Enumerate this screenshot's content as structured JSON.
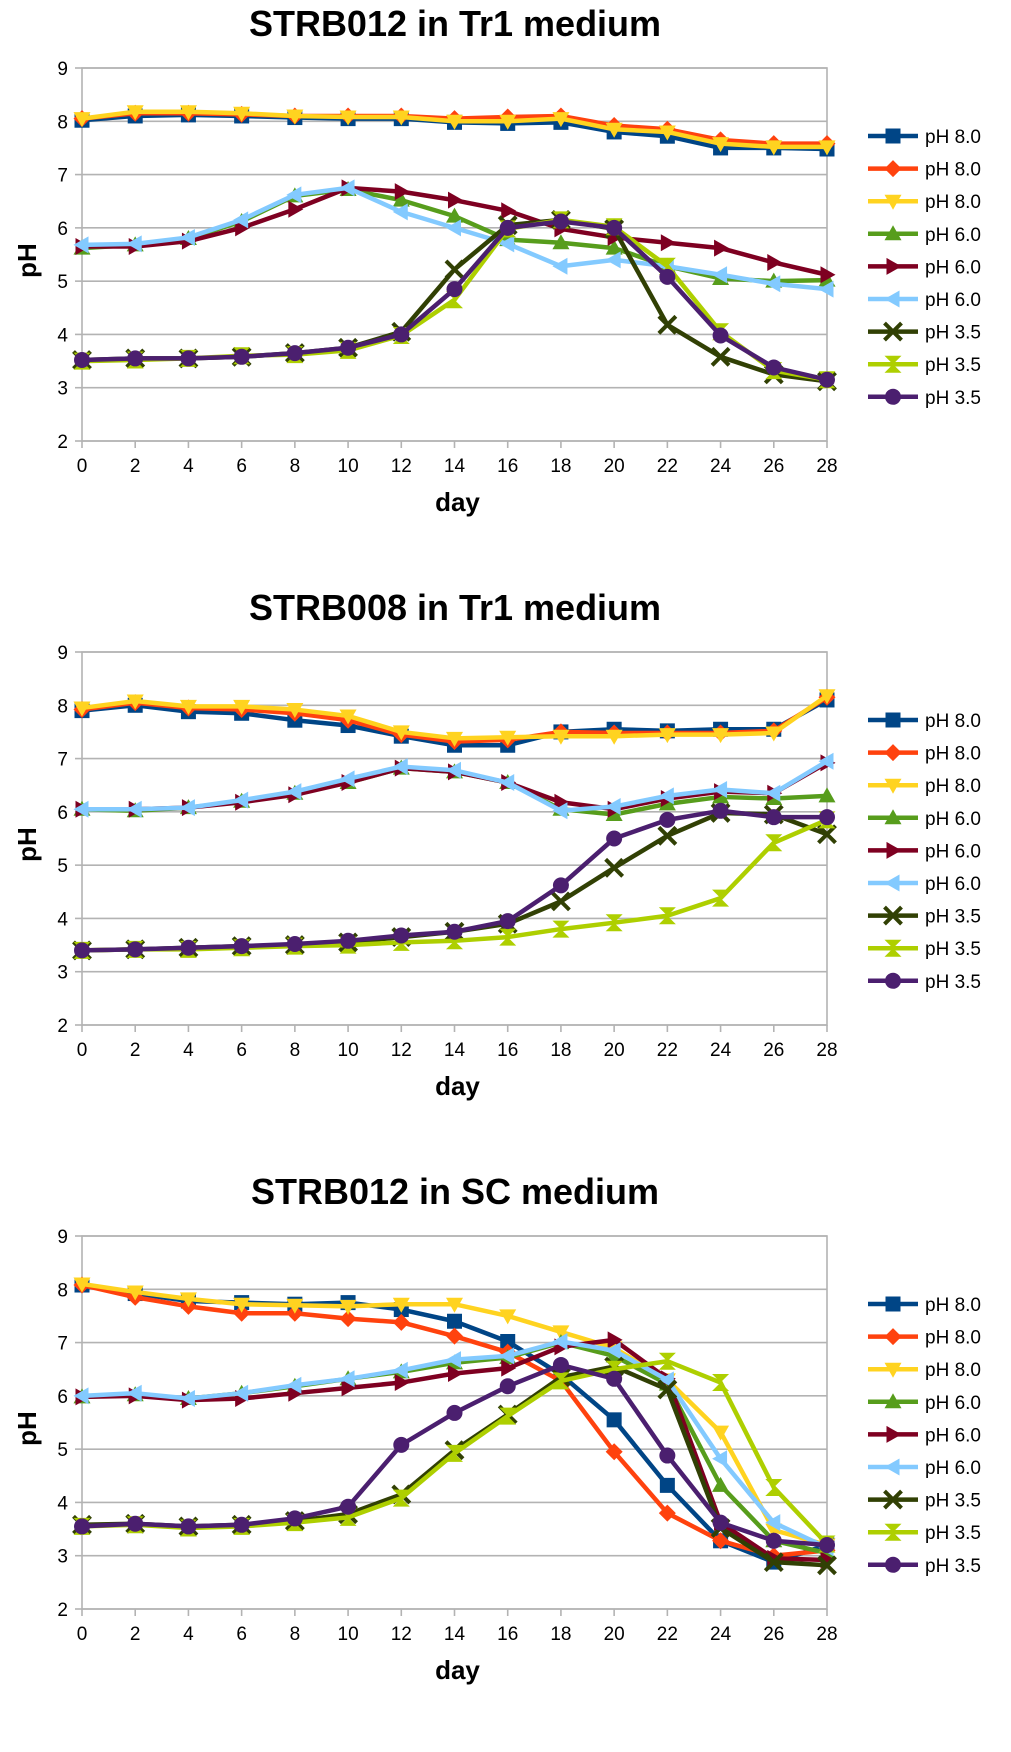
{
  "colors": {
    "pH8_a": "#004586",
    "pH8_b": "#ff420e",
    "pH8_c": "#ffd320",
    "pH6_a": "#579d1c",
    "pH6_b": "#7e0021",
    "pH6_c": "#83caff",
    "pH35_a": "#314004",
    "pH35_b": "#aecf00",
    "pH35_c": "#4b1f6f"
  },
  "chart_data": [
    {
      "type": "line",
      "title": "STRB012 in Tr1 medium",
      "xlabel": "day",
      "ylabel": "pH",
      "x": [
        0,
        2,
        4,
        6,
        8,
        10,
        12,
        14,
        16,
        18,
        20,
        22,
        24,
        26,
        28
      ],
      "xticks": [
        "0",
        "2",
        "4",
        "6",
        "8",
        "10",
        "12",
        "14",
        "16",
        "18",
        "20",
        "22",
        "24",
        "26",
        "28"
      ],
      "yticks": [
        "2",
        "3",
        "4",
        "5",
        "6",
        "7",
        "8",
        "9"
      ],
      "xlim": [
        0,
        28
      ],
      "ylim": [
        2,
        9
      ],
      "grid": true,
      "legend": "right",
      "series": [
        {
          "name": "pH 8.0",
          "marker": "square",
          "color": "#004586",
          "values": [
            8.02,
            8.1,
            8.12,
            8.1,
            8.07,
            8.05,
            8.05,
            7.98,
            7.96,
            7.98,
            7.8,
            7.72,
            7.5,
            7.5,
            7.48
          ]
        },
        {
          "name": "pH 8.0",
          "marker": "diamond",
          "color": "#ff420e",
          "values": [
            8.05,
            8.15,
            8.15,
            8.13,
            8.1,
            8.1,
            8.1,
            8.05,
            8.08,
            8.1,
            7.92,
            7.85,
            7.65,
            7.58,
            7.58
          ]
        },
        {
          "name": "pH 8.0",
          "marker": "triangle-down",
          "color": "#ffd320",
          "values": [
            8.05,
            8.18,
            8.18,
            8.15,
            8.1,
            8.08,
            8.08,
            8.0,
            8.0,
            8.05,
            7.85,
            7.8,
            7.58,
            7.52,
            7.52
          ]
        },
        {
          "name": "pH 6.0",
          "marker": "triangle-up",
          "color": "#579d1c",
          "values": [
            5.62,
            5.68,
            5.8,
            6.12,
            6.6,
            6.72,
            6.52,
            6.22,
            5.78,
            5.72,
            5.62,
            5.28,
            5.05,
            5.0,
            5.02
          ]
        },
        {
          "name": "pH 6.0",
          "marker": "triangle-right",
          "color": "#7e0021",
          "values": [
            5.65,
            5.65,
            5.75,
            6.0,
            6.35,
            6.75,
            6.68,
            6.52,
            6.32,
            5.98,
            5.82,
            5.72,
            5.62,
            5.35,
            5.12
          ]
        },
        {
          "name": "pH 6.0",
          "marker": "triangle-left",
          "color": "#83caff",
          "values": [
            5.68,
            5.7,
            5.82,
            6.15,
            6.62,
            6.75,
            6.3,
            6.0,
            5.7,
            5.28,
            5.4,
            5.28,
            5.12,
            4.95,
            4.85
          ]
        },
        {
          "name": "pH 3.5",
          "marker": "x",
          "color": "#314004",
          "values": [
            3.52,
            3.55,
            3.55,
            3.58,
            3.65,
            3.75,
            4.05,
            5.22,
            6.05,
            6.15,
            5.98,
            4.18,
            3.58,
            3.25,
            3.12
          ]
        },
        {
          "name": "pH 3.5",
          "marker": "hourglass",
          "color": "#aecf00",
          "values": [
            3.5,
            3.52,
            3.55,
            3.6,
            3.62,
            3.7,
            3.98,
            4.65,
            5.98,
            6.15,
            6.02,
            5.28,
            4.05,
            3.32,
            3.15
          ]
        },
        {
          "name": "pH 3.5",
          "marker": "circle",
          "color": "#4b1f6f",
          "values": [
            3.52,
            3.55,
            3.55,
            3.58,
            3.65,
            3.75,
            4.0,
            4.85,
            6.0,
            6.12,
            6.0,
            5.08,
            3.98,
            3.38,
            3.15
          ]
        }
      ]
    },
    {
      "type": "line",
      "title": "STRB008 in Tr1 medium",
      "xlabel": "day",
      "ylabel": "pH",
      "x": [
        0,
        2,
        4,
        6,
        8,
        10,
        12,
        14,
        16,
        18,
        20,
        22,
        24,
        26,
        28
      ],
      "xticks": [
        "0",
        "2",
        "4",
        "6",
        "8",
        "10",
        "12",
        "14",
        "16",
        "18",
        "20",
        "22",
        "24",
        "26",
        "28"
      ],
      "yticks": [
        "2",
        "3",
        "4",
        "5",
        "6",
        "7",
        "8",
        "9"
      ],
      "xlim": [
        0,
        28
      ],
      "ylim": [
        2,
        9
      ],
      "grid": true,
      "legend": "right",
      "series": [
        {
          "name": "pH 8.0",
          "marker": "square",
          "color": "#004586",
          "values": [
            7.9,
            8.0,
            7.88,
            7.85,
            7.72,
            7.62,
            7.42,
            7.25,
            7.25,
            7.5,
            7.55,
            7.52,
            7.55,
            7.55,
            8.1
          ]
        },
        {
          "name": "pH 8.0",
          "marker": "diamond",
          "color": "#ff420e",
          "values": [
            7.92,
            8.05,
            7.95,
            7.92,
            7.85,
            7.72,
            7.45,
            7.32,
            7.35,
            7.5,
            7.48,
            7.48,
            7.48,
            7.52,
            8.15
          ]
        },
        {
          "name": "pH 8.0",
          "marker": "triangle-down",
          "color": "#ffd320",
          "values": [
            7.95,
            8.08,
            7.98,
            7.98,
            7.92,
            7.8,
            7.5,
            7.38,
            7.4,
            7.42,
            7.42,
            7.45,
            7.45,
            7.48,
            8.18
          ]
        },
        {
          "name": "pH 6.0",
          "marker": "triangle-up",
          "color": "#579d1c",
          "values": [
            6.05,
            6.02,
            6.08,
            6.2,
            6.35,
            6.55,
            6.82,
            6.75,
            6.55,
            6.05,
            5.95,
            6.15,
            6.28,
            6.25,
            6.3
          ]
        },
        {
          "name": "pH 6.0",
          "marker": "triangle-right",
          "color": "#7e0021",
          "values": [
            6.05,
            6.05,
            6.08,
            6.18,
            6.32,
            6.55,
            6.82,
            6.75,
            6.55,
            6.18,
            6.05,
            6.25,
            6.38,
            6.35,
            6.92
          ]
        },
        {
          "name": "pH 6.0",
          "marker": "triangle-left",
          "color": "#83caff",
          "values": [
            6.05,
            6.05,
            6.08,
            6.22,
            6.38,
            6.62,
            6.85,
            6.78,
            6.55,
            6.02,
            6.1,
            6.3,
            6.42,
            6.35,
            6.95
          ]
        },
        {
          "name": "pH 3.5",
          "marker": "x",
          "color": "#314004",
          "values": [
            3.4,
            3.42,
            3.45,
            3.48,
            3.5,
            3.55,
            3.65,
            3.75,
            3.9,
            4.32,
            4.95,
            5.55,
            5.98,
            5.95,
            5.58
          ]
        },
        {
          "name": "pH 3.5",
          "marker": "hourglass",
          "color": "#aecf00",
          "values": [
            3.4,
            3.42,
            3.42,
            3.45,
            3.48,
            3.5,
            3.55,
            3.58,
            3.65,
            3.8,
            3.92,
            4.05,
            4.38,
            5.42,
            5.85
          ]
        },
        {
          "name": "pH 3.5",
          "marker": "circle",
          "color": "#4b1f6f",
          "values": [
            3.4,
            3.42,
            3.45,
            3.48,
            3.52,
            3.58,
            3.68,
            3.75,
            3.95,
            4.62,
            5.5,
            5.85,
            6.02,
            5.9,
            5.9
          ]
        }
      ]
    },
    {
      "type": "line",
      "title": "STRB012 in SC medium",
      "xlabel": "day",
      "ylabel": "pH",
      "x": [
        0,
        2,
        4,
        6,
        8,
        10,
        12,
        14,
        16,
        18,
        20,
        22,
        24,
        26,
        28
      ],
      "xticks": [
        "0",
        "2",
        "4",
        "6",
        "8",
        "10",
        "12",
        "14",
        "16",
        "18",
        "20",
        "22",
        "24",
        "26",
        "28"
      ],
      "yticks": [
        "2",
        "3",
        "4",
        "5",
        "6",
        "7",
        "8",
        "9"
      ],
      "xlim": [
        0,
        28
      ],
      "ylim": [
        2,
        9
      ],
      "grid": true,
      "legend": "right",
      "series": [
        {
          "name": "pH 8.0",
          "marker": "square",
          "color": "#004586",
          "values": [
            8.08,
            7.92,
            7.78,
            7.75,
            7.72,
            7.75,
            7.62,
            7.4,
            7.02,
            6.4,
            5.55,
            4.32,
            3.28,
            2.88,
            3.2
          ]
        },
        {
          "name": "pH 8.0",
          "marker": "diamond",
          "color": "#ff420e",
          "values": [
            8.08,
            7.85,
            7.68,
            7.55,
            7.55,
            7.45,
            7.38,
            7.12,
            6.82,
            6.28,
            4.95,
            3.8,
            3.28,
            3.0,
            3.1
          ]
        },
        {
          "name": "pH 8.0",
          "marker": "triangle-down",
          "color": "#ffd320",
          "values": [
            8.1,
            7.95,
            7.82,
            7.72,
            7.7,
            7.68,
            7.72,
            7.72,
            7.5,
            7.2,
            6.9,
            6.3,
            5.32,
            3.48,
            3.2
          ]
        },
        {
          "name": "pH 6.0",
          "marker": "triangle-up",
          "color": "#579d1c",
          "values": [
            5.98,
            6.02,
            5.95,
            6.05,
            6.18,
            6.32,
            6.45,
            6.62,
            6.72,
            7.0,
            6.75,
            6.22,
            4.32,
            3.28,
            3.05
          ]
        },
        {
          "name": "pH 6.0",
          "marker": "triangle-right",
          "color": "#7e0021",
          "values": [
            5.98,
            6.0,
            5.92,
            5.95,
            6.05,
            6.15,
            6.25,
            6.42,
            6.52,
            6.92,
            7.05,
            6.32,
            3.62,
            2.95,
            2.92
          ]
        },
        {
          "name": "pH 6.0",
          "marker": "triangle-left",
          "color": "#83caff",
          "values": [
            6.0,
            6.05,
            5.95,
            6.05,
            6.2,
            6.32,
            6.48,
            6.68,
            6.75,
            7.02,
            6.85,
            6.3,
            4.82,
            3.62,
            3.15
          ]
        },
        {
          "name": "pH 3.5",
          "marker": "x",
          "color": "#314004",
          "values": [
            3.58,
            3.6,
            3.55,
            3.58,
            3.65,
            3.78,
            4.15,
            4.98,
            5.65,
            6.35,
            6.55,
            6.12,
            3.52,
            2.88,
            2.82
          ]
        },
        {
          "name": "pH 3.5",
          "marker": "hourglass",
          "color": "#aecf00",
          "values": [
            3.55,
            3.58,
            3.52,
            3.55,
            3.62,
            3.72,
            4.08,
            4.92,
            5.62,
            6.28,
            6.5,
            6.65,
            6.25,
            4.28,
            3.22
          ]
        },
        {
          "name": "pH 3.5",
          "marker": "circle",
          "color": "#4b1f6f",
          "values": [
            3.55,
            3.6,
            3.55,
            3.58,
            3.7,
            3.92,
            5.08,
            5.68,
            6.18,
            6.58,
            6.32,
            4.88,
            3.62,
            3.28,
            3.2
          ]
        }
      ]
    }
  ]
}
